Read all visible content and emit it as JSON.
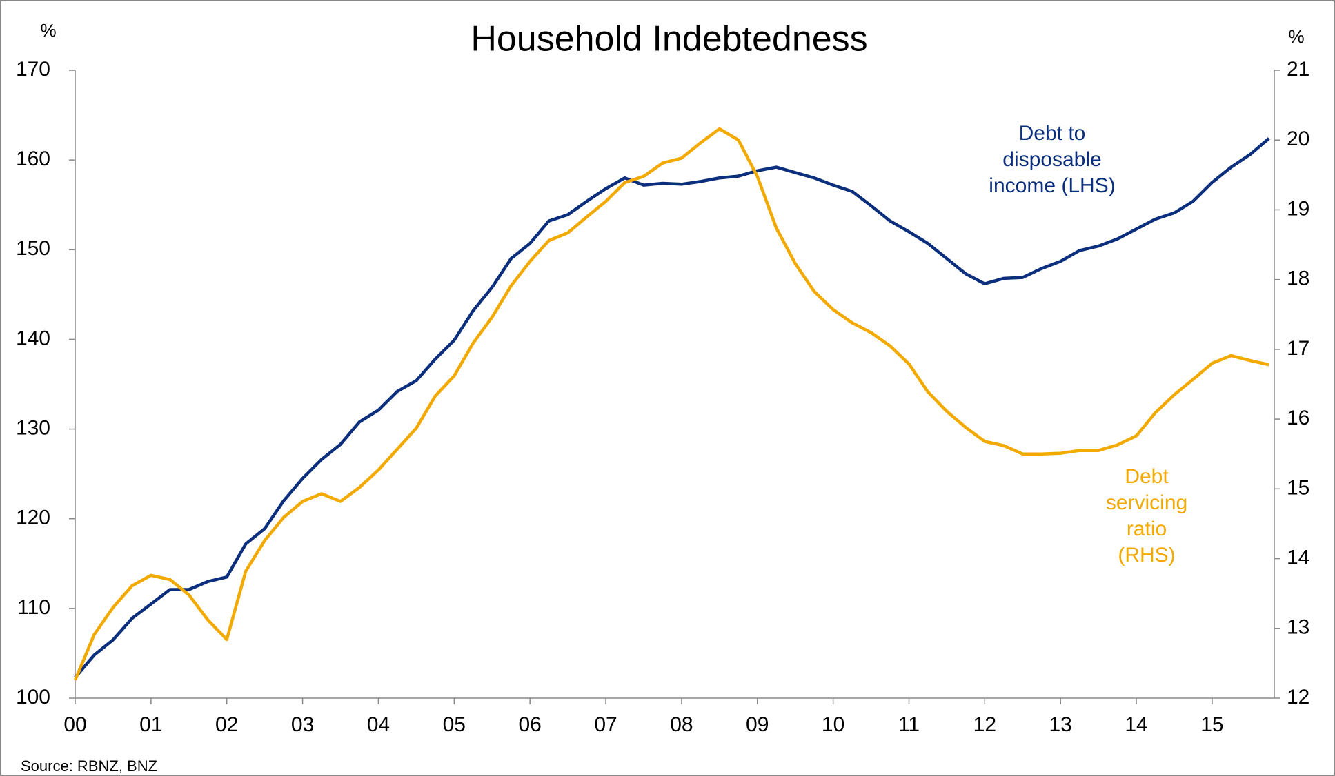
{
  "chart_data": {
    "type": "line",
    "title": "Household Indebtedness",
    "ylabel": "%",
    "y2label": "%",
    "source": "Source: RBNZ, BNZ",
    "x": [
      2000,
      2000.25,
      2000.5,
      2000.75,
      2001,
      2001.25,
      2001.5,
      2001.75,
      2002,
      2002.25,
      2002.5,
      2002.75,
      2003,
      2003.25,
      2003.5,
      2003.75,
      2004,
      2004.25,
      2004.5,
      2004.75,
      2005,
      2005.25,
      2005.5,
      2005.75,
      2006,
      2006.25,
      2006.5,
      2006.75,
      2007,
      2007.25,
      2007.5,
      2007.75,
      2008,
      2008.25,
      2008.5,
      2008.75,
      2009,
      2009.25,
      2009.5,
      2009.75,
      2010,
      2010.25,
      2010.5,
      2010.75,
      2011,
      2011.25,
      2011.5,
      2011.75,
      2012,
      2012.25,
      2012.5,
      2012.75,
      2013,
      2013.25,
      2013.5,
      2013.75,
      2014,
      2014.25,
      2014.5,
      2014.75,
      2015,
      2015.25,
      2015.5,
      2015.75
    ],
    "series": [
      {
        "name": "Debt to disposable income (LHS)",
        "color": "#0b2f7c",
        "axis": "y",
        "values": [
          102.3,
          104.8,
          106.5,
          108.9,
          110.5,
          112.1,
          112.1,
          113.0,
          113.5,
          117.2,
          118.9,
          122.0,
          124.5,
          126.6,
          128.3,
          130.8,
          132.1,
          134.2,
          135.4,
          137.8,
          139.9,
          143.2,
          145.8,
          149.0,
          150.7,
          153.2,
          153.9,
          155.4,
          156.8,
          158.0,
          157.2,
          157.4,
          157.3,
          157.6,
          158.0,
          158.2,
          158.8,
          159.2,
          158.6,
          158.0,
          157.2,
          156.5,
          154.9,
          153.2,
          152.0,
          150.7,
          149.0,
          147.3,
          146.2,
          146.8,
          146.9,
          147.9,
          148.7,
          149.9,
          150.4,
          151.2,
          152.3,
          153.4,
          154.1,
          155.4,
          157.5,
          159.2,
          160.6,
          162.4
        ]
      },
      {
        "name": "Debt servicing ratio (RHS)",
        "color": "#f2a900",
        "axis": "y2",
        "values": [
          12.26,
          12.91,
          13.3,
          13.61,
          13.76,
          13.7,
          13.48,
          13.12,
          12.84,
          13.82,
          14.26,
          14.59,
          14.82,
          14.93,
          14.82,
          15.02,
          15.27,
          15.57,
          15.87,
          16.33,
          16.62,
          17.09,
          17.46,
          17.91,
          18.26,
          18.56,
          18.67,
          18.9,
          19.12,
          19.39,
          19.48,
          19.67,
          19.74,
          19.96,
          20.16,
          20.0,
          19.48,
          18.74,
          18.23,
          17.83,
          17.57,
          17.38,
          17.24,
          17.05,
          16.79,
          16.39,
          16.11,
          15.88,
          15.68,
          15.62,
          15.5,
          15.5,
          15.51,
          15.55,
          15.55,
          15.63,
          15.76,
          16.09,
          16.35,
          16.57,
          16.8,
          16.91,
          16.84,
          16.78
        ]
      }
    ],
    "annotations": [
      {
        "lines": [
          "Debt to",
          "disposable",
          "income (LHS)"
        ],
        "color": "#0b2f7c"
      },
      {
        "lines": [
          "Debt",
          "servicing",
          "ratio",
          "(RHS)"
        ],
        "color": "#f2a900"
      }
    ],
    "xlim": [
      2000,
      2015.82
    ],
    "xticks": [
      {
        "value": 2000,
        "label": "00"
      },
      {
        "value": 2001,
        "label": "01"
      },
      {
        "value": 2002,
        "label": "02"
      },
      {
        "value": 2003,
        "label": "03"
      },
      {
        "value": 2004,
        "label": "04"
      },
      {
        "value": 2005,
        "label": "05"
      },
      {
        "value": 2006,
        "label": "06"
      },
      {
        "value": 2007,
        "label": "07"
      },
      {
        "value": 2008,
        "label": "08"
      },
      {
        "value": 2009,
        "label": "09"
      },
      {
        "value": 2010,
        "label": "10"
      },
      {
        "value": 2011,
        "label": "11"
      },
      {
        "value": 2012,
        "label": "12"
      },
      {
        "value": 2013,
        "label": "13"
      },
      {
        "value": 2014,
        "label": "14"
      },
      {
        "value": 2015,
        "label": "15"
      }
    ],
    "ylim": [
      100,
      170
    ],
    "yticks": [
      100,
      110,
      120,
      130,
      140,
      150,
      160,
      170
    ],
    "y2lim": [
      12,
      21
    ],
    "y2ticks": [
      12,
      13,
      14,
      15,
      16,
      17,
      18,
      19,
      20,
      21
    ],
    "grid": false
  }
}
